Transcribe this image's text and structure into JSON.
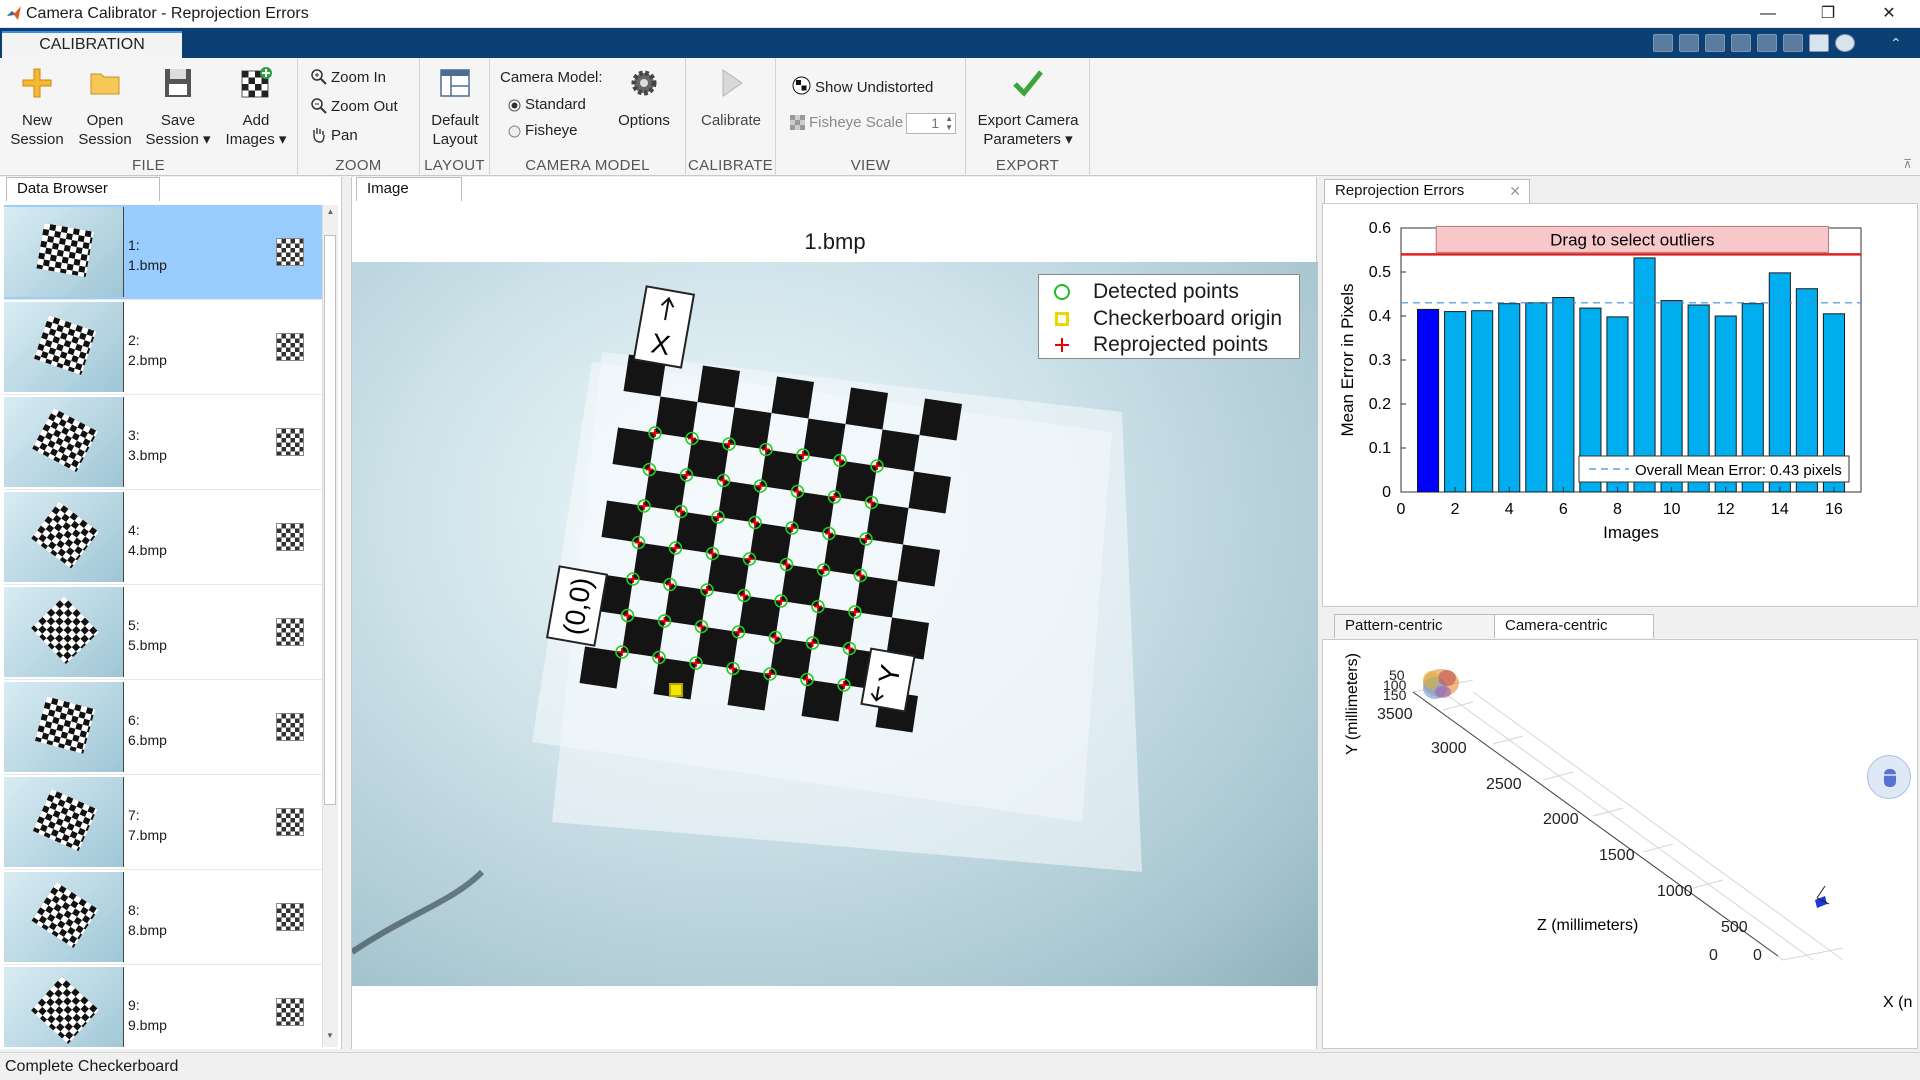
{
  "window": {
    "title": "Camera Calibrator - Reprojection Errors",
    "minimize": "—",
    "restore": "❐",
    "close": "✕"
  },
  "ribbon_tab": "CALIBRATION",
  "file": {
    "label": "FILE",
    "new_session": [
      "New",
      "Session"
    ],
    "open_session": [
      "Open",
      "Session"
    ],
    "save_session": [
      "Save",
      "Session ▾"
    ],
    "add_images": [
      "Add",
      "Images ▾"
    ]
  },
  "zoom": {
    "label": "ZOOM",
    "zoom_in": "Zoom In",
    "zoom_out": "Zoom Out",
    "pan": "Pan"
  },
  "layout": {
    "label": "LAYOUT",
    "default_layout": [
      "Default",
      "Layout"
    ]
  },
  "camera_model": {
    "label": "CAMERA MODEL",
    "title": "Camera Model:",
    "standard": "Standard",
    "fisheye": "Fisheye",
    "options": "Options",
    "selected": "Standard"
  },
  "calibrate": {
    "label": "CALIBRATE",
    "button": "Calibrate"
  },
  "view": {
    "label": "VIEW",
    "show_undistorted": "Show Undistorted",
    "fisheye_scale": "Fisheye Scale",
    "fisheye_scale_value": "1"
  },
  "export": {
    "label": "EXPORT",
    "button": [
      "Export Camera",
      "Parameters ▾"
    ]
  },
  "data_browser": {
    "tab": "Data Browser",
    "items": [
      {
        "num": "1:",
        "file": "1.bmp",
        "selected": true
      },
      {
        "num": "2:",
        "file": "2.bmp"
      },
      {
        "num": "3:",
        "file": "3.bmp"
      },
      {
        "num": "4:",
        "file": "4.bmp"
      },
      {
        "num": "5:",
        "file": "5.bmp"
      },
      {
        "num": "6:",
        "file": "6.bmp"
      },
      {
        "num": "7:",
        "file": "7.bmp"
      },
      {
        "num": "8:",
        "file": "8.bmp"
      },
      {
        "num": "9:",
        "file": "9.bmp"
      }
    ]
  },
  "image_panel": {
    "tab": "Image",
    "title": "1.bmp",
    "legend": [
      "Detected points",
      "Checkerboard origin",
      "Reprojected points"
    ],
    "origin_label": "(0,0)",
    "x_label": "X",
    "y_label": "Y"
  },
  "reprojection": {
    "tab": "Reprojection Errors",
    "close": "✕"
  },
  "chart_data": {
    "type": "bar",
    "x": [
      1,
      2,
      3,
      4,
      5,
      6,
      7,
      8,
      9,
      10,
      11,
      12,
      13,
      14,
      15,
      16
    ],
    "values": [
      0.415,
      0.41,
      0.412,
      0.428,
      0.43,
      0.442,
      0.418,
      0.398,
      0.532,
      0.435,
      0.425,
      0.4,
      0.428,
      0.498,
      0.462,
      0.405
    ],
    "selected_index": 0,
    "xlabel": "Images",
    "ylabel": "Mean Error in Pixels",
    "xlim": [
      0,
      17
    ],
    "ylim": [
      0,
      0.6
    ],
    "xticks": [
      0,
      2,
      4,
      6,
      8,
      10,
      12,
      14,
      16
    ],
    "yticks": [
      0,
      0.1,
      0.2,
      0.3,
      0.4,
      0.5,
      0.6
    ],
    "overall_mean": 0.43,
    "mean_legend": "Overall Mean Error: 0.43 pixels",
    "outlier_label": "Drag to select outliers",
    "outlier_threshold": 0.54,
    "bar_color": "#00aeef",
    "selected_color": "#0000ff"
  },
  "extrinsics": {
    "tabs": [
      "Pattern-centric",
      "Camera-centric"
    ],
    "active": "Camera-centric",
    "y_label": "Y (millimeters)",
    "z_label": "Z (millimeters)",
    "x_label": "X (n",
    "z_ticks": [
      "3500",
      "3000",
      "2500",
      "2000",
      "1500",
      "1000",
      "500",
      "0"
    ],
    "x_tick": "0",
    "y_ticks": [
      "50",
      "100",
      "150"
    ]
  },
  "status": "Complete Checkerboard"
}
